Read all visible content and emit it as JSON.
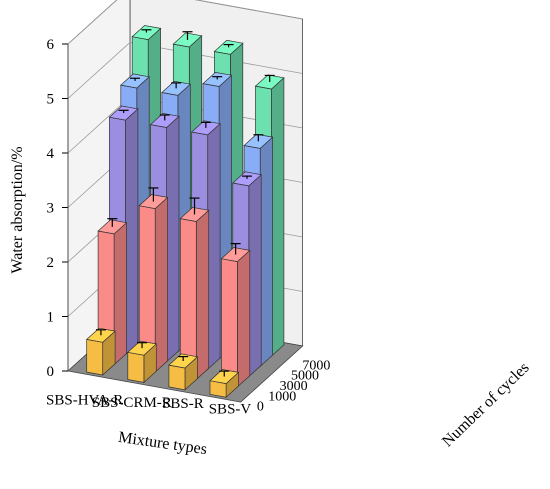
{
  "chart_data": {
    "type": "bar",
    "subtype": "3d-grouped-bar",
    "ylabel": "Water absorption/%",
    "xlabel": "Mixture types",
    "zlabel": "Number of cycles",
    "ylim": [
      0,
      6
    ],
    "y_ticks": [
      "0",
      "1",
      "2",
      "3",
      "4",
      "5",
      "6"
    ],
    "categories": [
      "SBS-HVA-R",
      "SBS-CRM-R",
      "SBS-R",
      "SBS-V"
    ],
    "cycle_ticks": [
      "0",
      "1000",
      "3000",
      "5000",
      "7000"
    ],
    "grid": true,
    "error_bars": true,
    "series": [
      {
        "cycles": "0",
        "color": "#f6bd45",
        "values": [
          0.6,
          0.5,
          0.4,
          0.25
        ],
        "errors": [
          0.1,
          0.1,
          0.08,
          0.1
        ]
      },
      {
        "cycles": "1000",
        "color": "#fb8b89",
        "values": [
          2.4,
          3.0,
          2.9,
          2.3
        ],
        "errors": [
          0.15,
          0.25,
          0.3,
          0.2
        ]
      },
      {
        "cycles": "3000",
        "color": "#9b8de0",
        "values": [
          4.3,
          4.3,
          4.3,
          3.5
        ],
        "errors": [
          0.05,
          0.1,
          0.1,
          0.05
        ]
      },
      {
        "cycles": "5000",
        "color": "#88acf5",
        "values": [
          4.7,
          4.7,
          5.0,
          4.0
        ],
        "errors": [
          0.05,
          0.1,
          0.05,
          0.12
        ]
      },
      {
        "cycles": "7000",
        "color": "#6ce0ae",
        "values": [
          5.4,
          5.4,
          5.4,
          4.9
        ],
        "errors": [
          0.05,
          0.15,
          0.05,
          0.12
        ]
      }
    ]
  }
}
